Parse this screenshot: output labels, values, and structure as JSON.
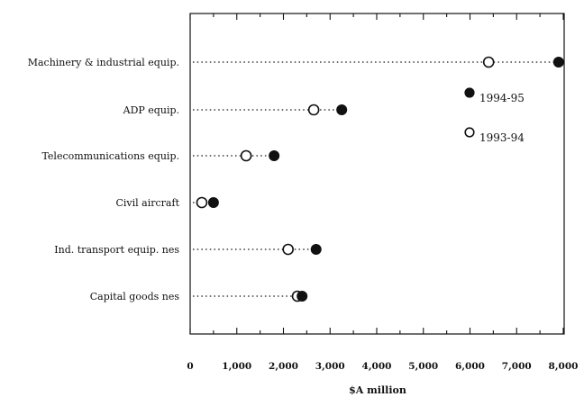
{
  "chart_data": {
    "type": "dot",
    "title": "",
    "xlabel": "$A million",
    "ylabel": "",
    "xlim": [
      0,
      8000
    ],
    "xticks": [
      0,
      1000,
      2000,
      3000,
      4000,
      5000,
      6000,
      7000,
      8000
    ],
    "xtick_labels": [
      "0",
      "1,000",
      "2,000",
      "3,000",
      "4,000",
      "5,000",
      "6,000",
      "7,000",
      "8,000"
    ],
    "grid": false,
    "legend_position": "right",
    "categories": [
      "Machinery & industrial equip.",
      "ADP equip.",
      "Telecommunications equip.",
      "Civil aircraft",
      "Ind. transport equip. nes",
      "Capital goods nes"
    ],
    "series": [
      {
        "name": "1994-95",
        "marker": "filled-circle",
        "color": "#111111",
        "values": [
          7900,
          3250,
          1800,
          500,
          2700,
          2400
        ]
      },
      {
        "name": "1993-94",
        "marker": "open-circle",
        "color": "#111111",
        "values": [
          6400,
          2650,
          1200,
          250,
          2100,
          2300
        ]
      }
    ]
  }
}
